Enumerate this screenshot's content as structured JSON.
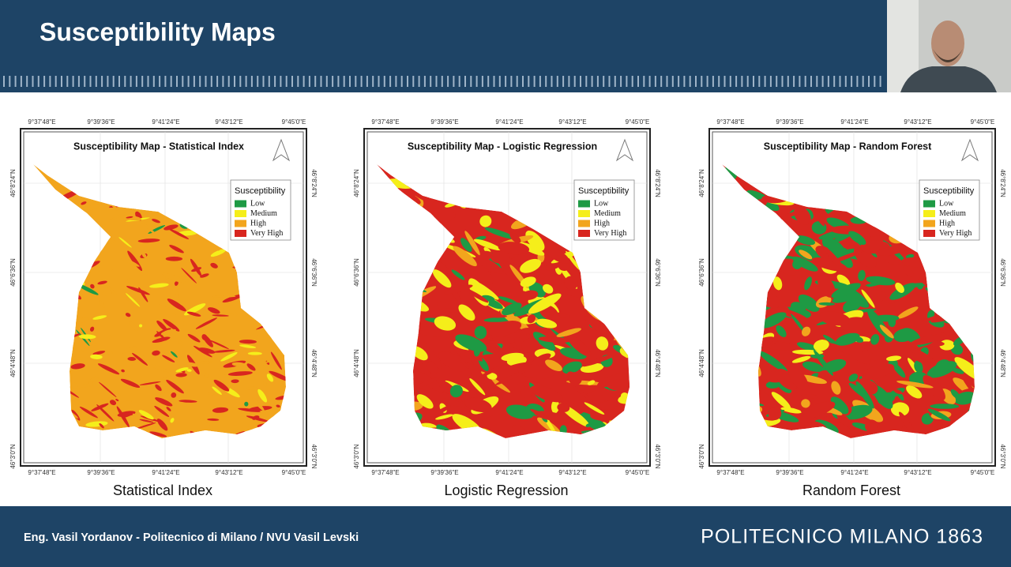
{
  "header": {
    "title": "Susceptibility Maps"
  },
  "coordinates": {
    "x_labels": [
      "9°37'48\"E",
      "9°39'36\"E",
      "9°41'24\"E",
      "9°43'12\"E",
      "9°45'0\"E"
    ],
    "y_labels": [
      "46°8'24\"N",
      "46°6'36\"N",
      "46°4'48\"N",
      "46°3'0\"N"
    ]
  },
  "maps": [
    {
      "title": "Susceptibility Map - Statistical Index",
      "caption": "Statistical Index",
      "legend": {
        "title": "Susceptibility",
        "items": [
          {
            "label": "Low",
            "color": "#1e9a44"
          },
          {
            "label": "Medium",
            "color": "#f5ee1a"
          },
          {
            "label": "High",
            "color": "#f2a51d"
          },
          {
            "label": "Very High",
            "color": "#d8261f"
          }
        ]
      }
    },
    {
      "title": "Susceptibility Map - Logistic Regression",
      "caption": "Logistic Regression",
      "legend": {
        "title": "Susceptibility",
        "items": [
          {
            "label": "Low",
            "color": "#1e9a44"
          },
          {
            "label": "Medium",
            "color": "#f5ee1a"
          },
          {
            "label": "High",
            "color": "#f2a51d"
          },
          {
            "label": "Very High",
            "color": "#d8261f"
          }
        ]
      }
    },
    {
      "title": "Susceptibility Map - Random Forest",
      "caption": "Random Forest",
      "legend": {
        "title": "Susceptibility",
        "items": [
          {
            "label": "Low",
            "color": "#1e9a44"
          },
          {
            "label": "Medium",
            "color": "#f5ee1a"
          },
          {
            "label": "High",
            "color": "#f2a51d"
          },
          {
            "label": "Very High",
            "color": "#d8261f"
          }
        ]
      }
    }
  ],
  "footer": {
    "author": "Eng. Vasil Yordanov - Politecnico di Milano / NVU Vasil Levski",
    "institution": "POLITECNICO MILANO 1863"
  }
}
